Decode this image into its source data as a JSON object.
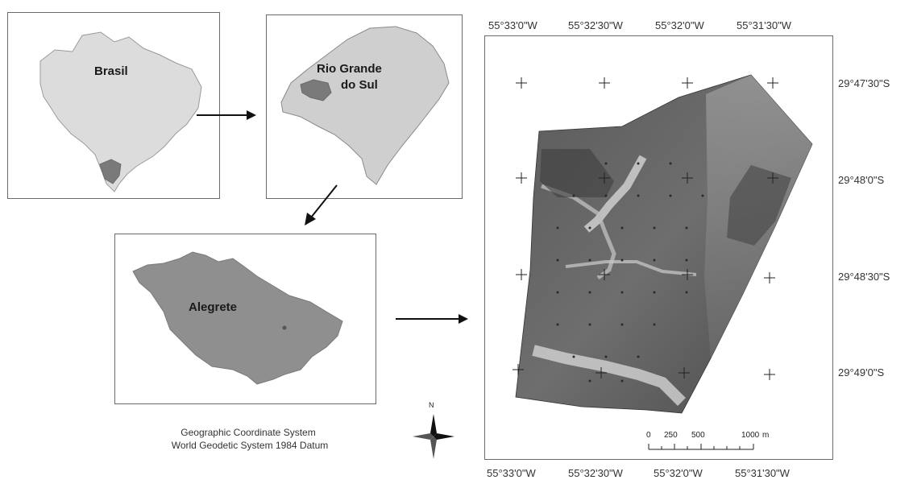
{
  "panels": {
    "brasil": {
      "label": "Brasil"
    },
    "rs": {
      "label_line1": "Rio Grande",
      "label_line2": "do Sul"
    },
    "alegrete": {
      "label": "Alegrete"
    }
  },
  "crs": {
    "line1": "Geographic Coordinate System",
    "line2": "World Geodetic System 1984 Datum"
  },
  "north_arrow": {
    "label": "N"
  },
  "map": {
    "top_ticks": [
      "55°33'0\"W",
      "55°32'30\"W",
      "55°32'0\"W",
      "55°31'30\"W"
    ],
    "bottom_ticks": [
      "55°33'0\"W",
      "55°32'30\"W",
      "55°32'0\"W",
      "55°31'30\"W"
    ],
    "right_ticks": [
      "29°47'30\"S",
      "29°48'0\"S",
      "29°48'30\"S",
      "29°49'0\"S"
    ]
  },
  "scale_bar": {
    "labels": [
      "0",
      "250",
      "500",
      "1000"
    ],
    "unit": "m"
  },
  "colors": {
    "country_fill": "#dcdcdc",
    "state_fill": "#cfcfcf",
    "highlight_fill": "#7a7a7a",
    "municipality_fill": "#8f8f8f",
    "border": "#6b6b6b"
  }
}
